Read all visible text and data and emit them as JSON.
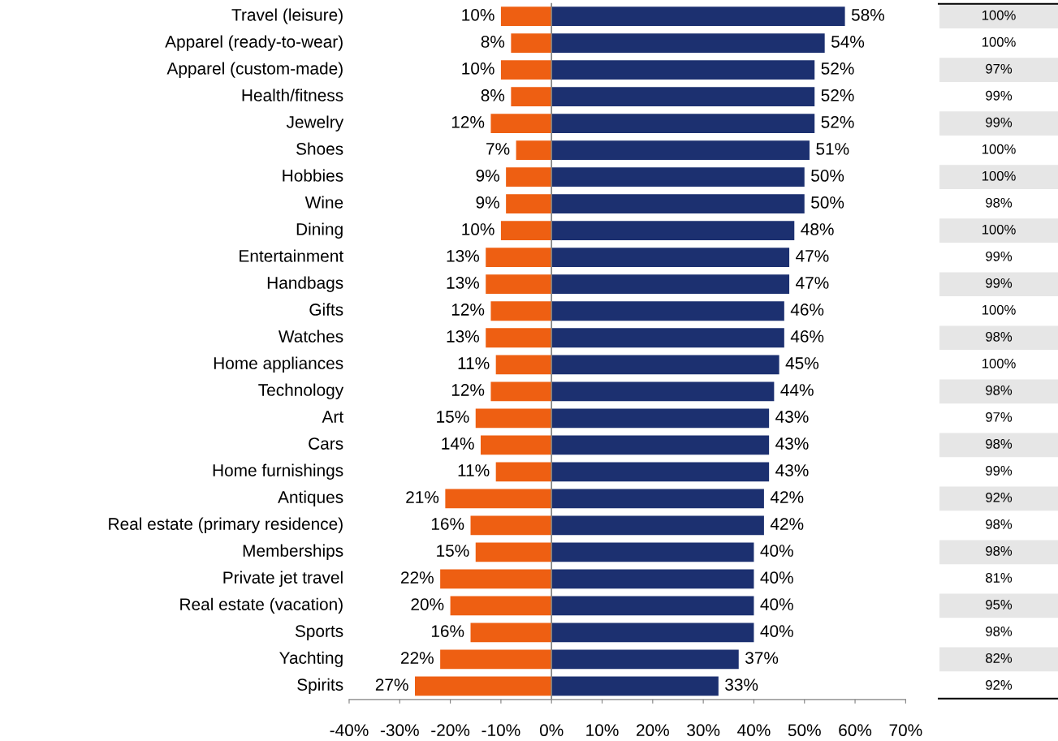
{
  "chart_data": [
    {
      "type": "bar",
      "orientation": "horizontal",
      "stacked": true,
      "categories": [
        "Travel (leisure)",
        "Apparel (ready-to-wear)",
        "Apparel (custom-made)",
        "Health/fitness",
        "Jewelry",
        "Shoes",
        "Hobbies",
        "Wine",
        "Dining",
        "Entertainment",
        "Handbags",
        "Gifts",
        "Watches",
        "Home appliances",
        "Technology",
        "Art",
        "Cars",
        "Home furnishings",
        "Antiques",
        "Real estate (primary residence)",
        "Memberships",
        "Private jet travel",
        "Real estate (vacation)",
        "Sports",
        "Yachting",
        "Spirits"
      ],
      "series": [
        {
          "color": "#ee5f12",
          "values": [
            10,
            8,
            10,
            8,
            12,
            7,
            9,
            9,
            10,
            13,
            13,
            12,
            13,
            11,
            12,
            15,
            14,
            11,
            21,
            16,
            15,
            22,
            20,
            16,
            22,
            27
          ],
          "base": [
            -10,
            -8,
            -10,
            -8,
            -12,
            -7,
            -9,
            -9,
            -10,
            -13,
            -13,
            -12,
            -13,
            -11,
            -12,
            -15,
            -14,
            -11,
            -21,
            -16,
            -15,
            -22,
            -20,
            -16,
            -22,
            -27
          ],
          "value_labels": [
            "10%",
            "8%",
            "10%",
            "8%",
            "12%",
            "7%",
            "9%",
            "9%",
            "10%",
            "13%",
            "13%",
            "12%",
            "13%",
            "11%",
            "12%",
            "15%",
            "14%",
            "11%",
            "21%",
            "16%",
            "15%",
            "22%",
            "20%",
            "16%",
            "22%",
            "27%"
          ]
        },
        {
          "color": "#1c3070",
          "values": [
            58,
            54,
            52,
            52,
            52,
            51,
            50,
            50,
            48,
            47,
            47,
            46,
            46,
            45,
            44,
            43,
            43,
            43,
            42,
            42,
            40,
            40,
            40,
            40,
            37,
            33
          ],
          "value_labels": [
            "58%",
            "54%",
            "52%",
            "52%",
            "52%",
            "51%",
            "50%",
            "50%",
            "48%",
            "47%",
            "47%",
            "46%",
            "46%",
            "45%",
            "44%",
            "43%",
            "43%",
            "43%",
            "42%",
            "42%",
            "40%",
            "40%",
            "40%",
            "40%",
            "37%",
            "33%"
          ]
        }
      ],
      "xlim": [
        -40,
        70
      ],
      "xticks": [
        {
          "value": -40,
          "label": "-40%"
        },
        {
          "value": -30,
          "label": "-30%"
        },
        {
          "value": -20,
          "label": "-20%"
        },
        {
          "value": -10,
          "label": "-10%"
        },
        {
          "value": 0,
          "label": "0%"
        },
        {
          "value": 10,
          "label": "10%"
        },
        {
          "value": 20,
          "label": "20%"
        },
        {
          "value": 30,
          "label": "30%"
        },
        {
          "value": 40,
          "label": "40%"
        },
        {
          "value": 50,
          "label": "50%"
        },
        {
          "value": 60,
          "label": "60%"
        },
        {
          "value": 70,
          "label": "70%"
        }
      ],
      "ref_lines": [
        {
          "axis": "x",
          "value": 0,
          "color": "#808080"
        }
      ]
    },
    {
      "type": "other",
      "annotations": [
        "100%",
        "100%",
        "97%",
        "99%",
        "99%",
        "100%",
        "100%",
        "98%",
        "100%",
        "99%",
        "99%",
        "100%",
        "98%",
        "100%",
        "98%",
        "97%",
        "98%",
        "99%",
        "92%",
        "98%",
        "98%",
        "81%",
        "95%",
        "98%",
        "82%",
        "92%"
      ]
    }
  ]
}
